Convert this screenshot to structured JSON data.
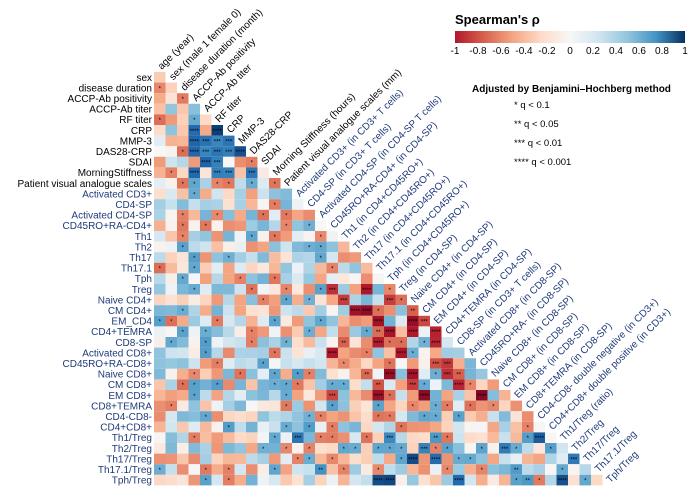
{
  "chart_data": {
    "type": "heatmap",
    "layout": "lower-triangle correlation matrix",
    "legend": {
      "title": "Spearman's ρ",
      "ticks": [
        "-1",
        "-0.8",
        "-0.6",
        "-0.4",
        "-0.2",
        "0",
        "0.2",
        "0.4",
        "0.6",
        "0.8",
        "1"
      ],
      "range": [
        -1,
        1
      ],
      "colors": [
        "#b2182b",
        "#d6604d",
        "#f4a582",
        "#fddbc7",
        "#f7f7f7",
        "#d1e5f0",
        "#92c5de",
        "#4393c3",
        "#2166ac"
      ]
    },
    "note": {
      "title": "Adjusted by Benjamini–Hochberg method",
      "lines": [
        "* q < 0.1",
        "** q < 0.05",
        "*** q < 0.01",
        "**** q < 0.001"
      ]
    },
    "row_labels": [
      "sex",
      "disease duration",
      "ACCP-Ab positivity",
      "ACCP-Ab titer",
      "RF titer",
      "CRP",
      "MMP-3",
      "DAS28-CRP",
      "SDAI",
      "MorningStiffness",
      "Patient visual analogue scales",
      "Activated CD3+",
      "CD4-SP",
      "Activated CD4-SP",
      "CD45RO+RA-CD4+",
      "Th1",
      "Th2",
      "Th17",
      "Th17.1",
      "Tph",
      "Treg",
      "Naive CD4+",
      "CM CD4+",
      "EM_CD4",
      "CD4+TEMRA",
      "CD8-SP",
      "Activated CD8+",
      "CD45RO+RA-CD8+",
      "Naive CD8+",
      "CM CD8+",
      "EM CD8+",
      "CD8+TEMRA",
      "CD4-CD8-",
      "CD4+CD8+",
      "Th1/Treg",
      "Th2/Treg",
      "Th17/Treg",
      "Th17.1/Treg",
      "Tph/Treg"
    ],
    "col_labels": [
      "age (year)",
      "sex (male 1 female 0)",
      "disease duration (month)",
      "ACCP-Ab positivity",
      "ACCP-Ab titer",
      "RF titer",
      "CRP",
      "MMP-3",
      "DAS28-CRP",
      "SDAI",
      "Morning Stiffness (hours)",
      "Patient visual analogue scales (mm)",
      "Activated CD3+ (in CD3+ T cells)",
      "CD4-SP (in CD3+ T cells)",
      "Activated CD4-SP (in CD4-SP T cells)",
      "CD45RO+RA-CD4+ (in CD4-SP)",
      "Th1 (in CD4+CD45RO+)",
      "Th2 (in CD4+CD45RO+)",
      "Th17 (in CD4+CD45RO+)",
      "Th17.1 (in CD4+CD45RO+)",
      "Tph (in CD4+CD45RO+)",
      "Treg (in CD4-SP)",
      "Naive CD4+ (in CD4-SP)",
      "CM CD4+ (in CD4-SP)",
      "EM CD4+ (in CD4-SP)",
      "CD4+TEMRA (in CD4-SP)",
      "CD8-SP (in CD3+ T cells)",
      "Activated CD8+ (in CD8-SP)",
      "CD45RO+RA- (in CD8-SP)",
      "Naive CD8+ (in CD8-SP)",
      "CM CD8+ (in CD8-SP)",
      "EM CD8+ (in CD8-SP)",
      "CD8+TEMRA (in CD8-SP)",
      "CD4-CD8- double negative (in CD3+)",
      "CD4+CD8+ double positive (in CD3+)",
      "Th1/Treg (ratio)",
      "Th2/Treg",
      "Th17/Treg",
      "Th17.1/Treg",
      "Tph/Treg"
    ],
    "seed": 20240117
  }
}
